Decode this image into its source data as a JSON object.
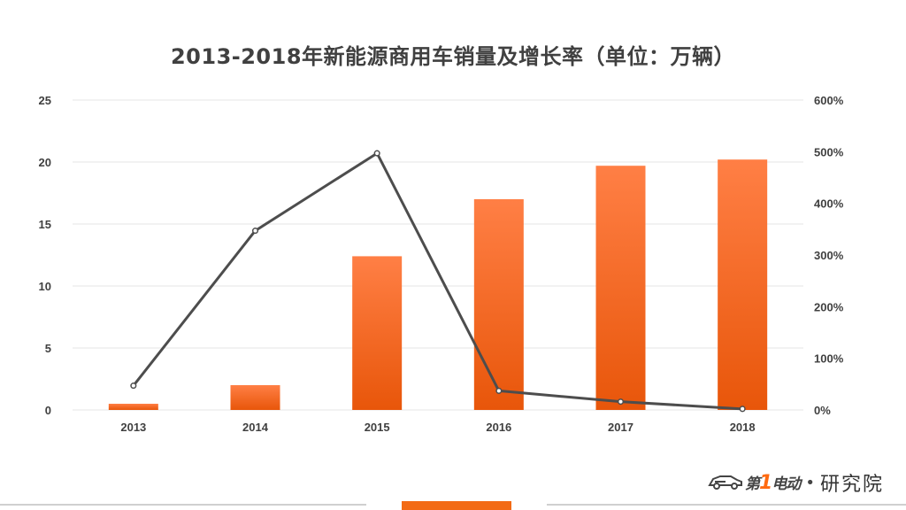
{
  "page": {
    "title": "2013-2018年新能源商用车销量及增长率（单位：万辆）"
  },
  "brand": {
    "logo_prefix": "第",
    "logo_one": "1",
    "logo_suffix": "电动",
    "separator": "•",
    "suffix": "研究院"
  },
  "colors": {
    "bar_top": "#ff7f45",
    "bar_bottom": "#e8560a",
    "line": "#4d4d4d",
    "grid": "#e6e6e6",
    "axis_text": "#404040",
    "accent": "#f36a14"
  },
  "chart_data": {
    "type": "bar",
    "title": "2013-2018年新能源商用车销量及增长率（单位：万辆）",
    "categories": [
      "2013",
      "2014",
      "2015",
      "2016",
      "2017",
      "2018"
    ],
    "series": [
      {
        "type": "bar",
        "axis": "left",
        "values": [
          0.5,
          2.0,
          12.4,
          17.0,
          19.7,
          20.2
        ]
      },
      {
        "type": "line",
        "axis": "right",
        "values": [
          47,
          347,
          497,
          37,
          16,
          2
        ]
      }
    ],
    "left_axis": {
      "min": 0,
      "max": 25,
      "ticks": [
        "0",
        "5",
        "10",
        "15",
        "20",
        "25"
      ]
    },
    "right_axis": {
      "min": 0,
      "max": 600,
      "ticks": [
        "0%",
        "100%",
        "200%",
        "300%",
        "400%",
        "500%",
        "600%"
      ]
    },
    "grid": true,
    "legend": "none"
  }
}
